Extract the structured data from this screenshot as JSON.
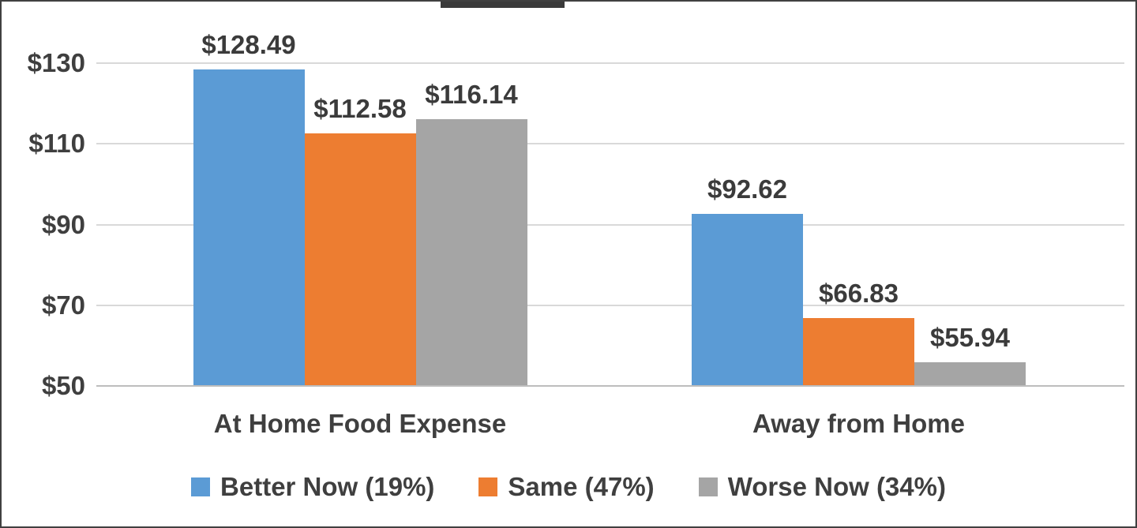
{
  "chart_data": {
    "type": "bar",
    "categories": [
      "At Home Food Expense",
      "Away from Home"
    ],
    "series": [
      {
        "name": "Better Now (19%)",
        "color": "#5B9BD5",
        "values": [
          128.49,
          92.62
        ],
        "data_labels": [
          "$128.49",
          "$92.62"
        ]
      },
      {
        "name": "Same (47%)",
        "color": "#ED7D31",
        "values": [
          112.58,
          66.83
        ],
        "data_labels": [
          "$112.58",
          "$66.83"
        ]
      },
      {
        "name": "Worse Now (34%)",
        "color": "#A5A5A5",
        "values": [
          116.14,
          55.94
        ],
        "data_labels": [
          "$116.14",
          "$55.94"
        ]
      }
    ],
    "y_axis": {
      "tick_labels": [
        "$130",
        "$110",
        "$90",
        "$70",
        "$50"
      ],
      "tick_values": [
        130,
        110,
        90,
        70,
        50
      ],
      "min": 50,
      "max": 130,
      "tick_interval": 20,
      "unit": "$"
    },
    "grid": true,
    "legend_position": "bottom"
  },
  "colors": {
    "text": "#3f3f3f",
    "gridline": "#d9d9d9",
    "axis_line": "#bdbdbd"
  }
}
